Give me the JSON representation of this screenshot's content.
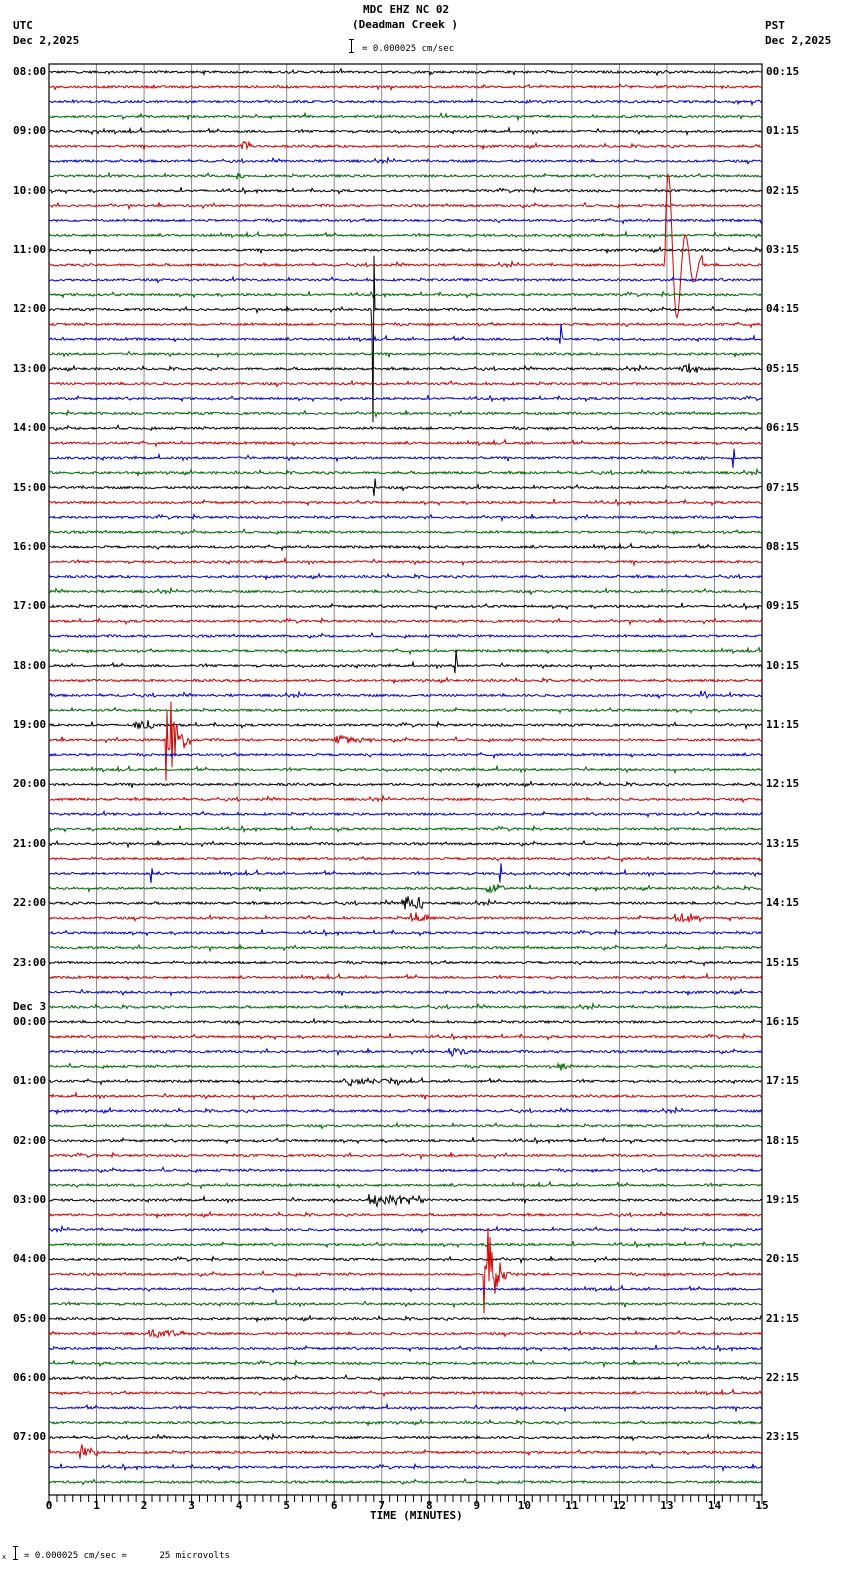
{
  "header": {
    "station": "MDC EHZ NC 02",
    "location": "(Deadman Creek )",
    "left_tz": "UTC",
    "left_date": "Dec 2,2025",
    "right_tz": "PST",
    "right_date": "Dec 2,2025",
    "scale_text": "= 0.000025 cm/sec"
  },
  "footer": {
    "scale_text": "= 0.000025 cm/sec =      25 microvolts",
    "scale_prefix": "x"
  },
  "chart_data": {
    "type": "line",
    "title": "MDC EHZ NC 02 (Deadman Creek )",
    "xlabel": "TIME (MINUTES)",
    "ylabel": "",
    "xlim": [
      0,
      15
    ],
    "x_ticks": [
      "0",
      "1",
      "2",
      "3",
      "4",
      "5",
      "6",
      "7",
      "8",
      "9",
      "10",
      "11",
      "12",
      "13",
      "14",
      "15"
    ],
    "minor_ticks_per_minute": 6,
    "grid": true,
    "rows_per_hour": 4,
    "row_count": 96,
    "trace_colors": [
      "#000000",
      "#cc0000",
      "#0000cc",
      "#006600"
    ],
    "left_labels": [
      {
        "row": 0,
        "text": "08:00"
      },
      {
        "row": 4,
        "text": "09:00"
      },
      {
        "row": 8,
        "text": "10:00"
      },
      {
        "row": 12,
        "text": "11:00"
      },
      {
        "row": 16,
        "text": "12:00"
      },
      {
        "row": 20,
        "text": "13:00"
      },
      {
        "row": 24,
        "text": "14:00"
      },
      {
        "row": 28,
        "text": "15:00"
      },
      {
        "row": 32,
        "text": "16:00"
      },
      {
        "row": 36,
        "text": "17:00"
      },
      {
        "row": 40,
        "text": "18:00"
      },
      {
        "row": 44,
        "text": "19:00"
      },
      {
        "row": 48,
        "text": "20:00"
      },
      {
        "row": 52,
        "text": "21:00"
      },
      {
        "row": 56,
        "text": "22:00"
      },
      {
        "row": 60,
        "text": "23:00"
      },
      {
        "row": 64,
        "text": "00:00",
        "date": "Dec 3"
      },
      {
        "row": 68,
        "text": "01:00"
      },
      {
        "row": 72,
        "text": "02:00"
      },
      {
        "row": 76,
        "text": "03:00"
      },
      {
        "row": 80,
        "text": "04:00"
      },
      {
        "row": 84,
        "text": "05:00"
      },
      {
        "row": 88,
        "text": "06:00"
      },
      {
        "row": 92,
        "text": "07:00"
      }
    ],
    "right_labels": [
      {
        "row": 0,
        "text": "00:15"
      },
      {
        "row": 4,
        "text": "01:15"
      },
      {
        "row": 8,
        "text": "02:15"
      },
      {
        "row": 12,
        "text": "03:15"
      },
      {
        "row": 16,
        "text": "04:15"
      },
      {
        "row": 20,
        "text": "05:15"
      },
      {
        "row": 24,
        "text": "06:15"
      },
      {
        "row": 28,
        "text": "07:15"
      },
      {
        "row": 32,
        "text": "08:15"
      },
      {
        "row": 36,
        "text": "09:15"
      },
      {
        "row": 40,
        "text": "10:15"
      },
      {
        "row": 44,
        "text": "11:15"
      },
      {
        "row": 48,
        "text": "12:15"
      },
      {
        "row": 52,
        "text": "13:15"
      },
      {
        "row": 56,
        "text": "14:15"
      },
      {
        "row": 60,
        "text": "15:15"
      },
      {
        "row": 64,
        "text": "16:15"
      },
      {
        "row": 68,
        "text": "17:15"
      },
      {
        "row": 72,
        "text": "18:15"
      },
      {
        "row": 76,
        "text": "19:15"
      },
      {
        "row": 80,
        "text": "20:15"
      },
      {
        "row": 84,
        "text": "21:15"
      },
      {
        "row": 88,
        "text": "22:15"
      },
      {
        "row": 92,
        "text": "23:15"
      }
    ],
    "events": [
      {
        "row": 5,
        "minute": 4.0,
        "amp": 6,
        "dur": 0.3,
        "kind": "burst"
      },
      {
        "row": 7,
        "minute": 3.95,
        "amp": 5,
        "dur": 0.15,
        "kind": "burst"
      },
      {
        "row": 13,
        "minute": 12.95,
        "amp": 120,
        "dur": 0.8,
        "kind": "transient"
      },
      {
        "row": 16,
        "minute": 6.82,
        "amp": 130,
        "dur": 0.05,
        "kind": "spike"
      },
      {
        "row": 18,
        "minute": 10.77,
        "amp": 16,
        "dur": 0.05,
        "kind": "spike"
      },
      {
        "row": 20,
        "minute": 13.3,
        "amp": 6,
        "dur": 0.4,
        "kind": "burst"
      },
      {
        "row": 26,
        "minute": 13.7,
        "amp": 6,
        "dur": 0.1,
        "kind": "burst"
      },
      {
        "row": 26,
        "minute": 14.4,
        "amp": 16,
        "dur": 0.05,
        "kind": "spike"
      },
      {
        "row": 28,
        "minute": 6.85,
        "amp": 14,
        "dur": 0.1,
        "kind": "spike"
      },
      {
        "row": 40,
        "minute": 8.56,
        "amp": 18,
        "dur": 0.05,
        "kind": "spike"
      },
      {
        "row": 42,
        "minute": 13.7,
        "amp": 5,
        "dur": 0.15,
        "kind": "burst"
      },
      {
        "row": 44,
        "minute": 1.8,
        "amp": 5,
        "dur": 0.4,
        "kind": "burst"
      },
      {
        "row": 45,
        "minute": 2.45,
        "amp": 60,
        "dur": 0.35,
        "kind": "quake"
      },
      {
        "row": 45,
        "minute": 6.0,
        "amp": 4,
        "dur": 0.8,
        "kind": "burst"
      },
      {
        "row": 54,
        "minute": 2.15,
        "amp": 10,
        "dur": 0.1,
        "kind": "spike"
      },
      {
        "row": 54,
        "minute": 9.5,
        "amp": 14,
        "dur": 0.1,
        "kind": "spike"
      },
      {
        "row": 55,
        "minute": 9.2,
        "amp": 6,
        "dur": 0.4,
        "kind": "burst"
      },
      {
        "row": 56,
        "minute": 7.4,
        "amp": 10,
        "dur": 0.5,
        "kind": "burst"
      },
      {
        "row": 57,
        "minute": 7.6,
        "amp": 6,
        "dur": 0.4,
        "kind": "burst"
      },
      {
        "row": 57,
        "minute": 13.1,
        "amp": 5,
        "dur": 0.6,
        "kind": "burst"
      },
      {
        "row": 66,
        "minute": 8.4,
        "amp": 5,
        "dur": 0.4,
        "kind": "burst"
      },
      {
        "row": 67,
        "minute": 10.7,
        "amp": 5,
        "dur": 0.3,
        "kind": "burst"
      },
      {
        "row": 68,
        "minute": 6.2,
        "amp": 4,
        "dur": 1.2,
        "kind": "burst"
      },
      {
        "row": 76,
        "minute": 6.7,
        "amp": 6,
        "dur": 1.2,
        "kind": "burst"
      },
      {
        "row": 81,
        "minute": 9.15,
        "amp": 60,
        "dur": 0.8,
        "kind": "quake"
      },
      {
        "row": 85,
        "minute": 2.1,
        "amp": 4,
        "dur": 0.8,
        "kind": "burst"
      },
      {
        "row": 93,
        "minute": 0.65,
        "amp": 8,
        "dur": 0.4,
        "kind": "burst"
      }
    ]
  }
}
